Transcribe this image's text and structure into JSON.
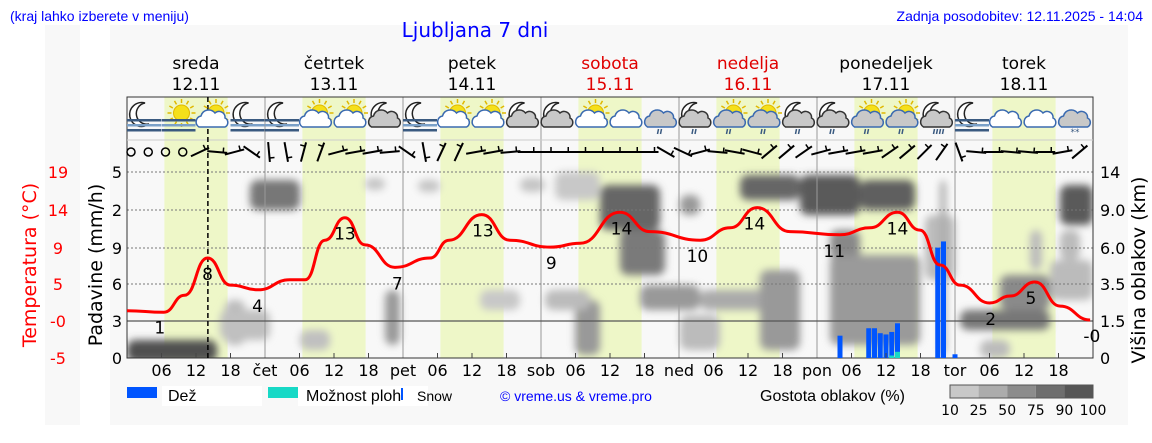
{
  "header": {
    "hint": "(kraj lahko izberete v meniju)",
    "title": "Ljubljana 7 dni",
    "updated": "Zadnja posodobitev: 12.11.2025 - 14:04"
  },
  "days": [
    {
      "name": "sreda",
      "date": "12.11",
      "weekend": false,
      "abbr": ""
    },
    {
      "name": "četrtek",
      "date": "13.11",
      "weekend": false,
      "abbr": "čet"
    },
    {
      "name": "petek",
      "date": "14.11",
      "weekend": false,
      "abbr": "pet"
    },
    {
      "name": "sobota",
      "date": "15.11",
      "weekend": true,
      "abbr": "sob"
    },
    {
      "name": "nedelja",
      "date": "16.11",
      "weekend": true,
      "abbr": "ned"
    },
    {
      "name": "ponedeljek",
      "date": "17.11",
      "weekend": false,
      "abbr": "pon"
    },
    {
      "name": "torek",
      "date": "18.11",
      "weekend": false,
      "abbr": "tor"
    }
  ],
  "hour_ticks": [
    "06",
    "12",
    "18"
  ],
  "colors": {
    "temperature": "#ff0000",
    "rain": "#0055ff",
    "showers": "#17d9c6",
    "text_blue": "#0000ff",
    "daylight": "#eef7c8",
    "weekend": "#e00000"
  },
  "weather_icons": [
    "moon-fog",
    "sun-fog",
    "sun-cloud",
    "moon-fog",
    "moon-fog",
    "sun-cloud",
    "sun-cloud",
    "moon-cloud",
    "moon-fog",
    "sun-cloud",
    "sun-cloud",
    "moon-cloud",
    "moon-cloud",
    "sun-cloud",
    "cloud",
    "cloud-rain",
    "moon-cloud-rain",
    "sun-cloud-rain",
    "sun-cloud-rain",
    "moon-cloud-rain",
    "moon-cloud-rain",
    "sun-cloud-rain",
    "sun-cloud-rain",
    "moon-cloud-heavy-rain",
    "moon-fog",
    "cloud",
    "cloud",
    "cloud-snow"
  ],
  "wind_barbs": [
    "calm",
    "calm",
    "calm",
    "calm",
    -25,
    5,
    -15,
    35,
    85,
    80,
    -75,
    -70,
    -15,
    -10,
    -10,
    -5,
    35,
    80,
    -65,
    -65,
    -10,
    -10,
    -5,
    0,
    0,
    0,
    0,
    0,
    0,
    0,
    0,
    30,
    25,
    -15,
    5,
    10,
    15,
    -40,
    -40,
    -35,
    -15,
    -10,
    -10,
    -10,
    -35,
    -40,
    -45,
    -55,
    70,
    5,
    0,
    5,
    5,
    0,
    -10,
    -40
  ],
  "chart_data": {
    "type": "line",
    "now_marker": "12.11 14:04",
    "axes": {
      "temperature": {
        "label": "Temperatura (°C)",
        "ticks": [
          "19",
          "14",
          "9",
          "5",
          "-0",
          "-5"
        ],
        "range": [
          -5,
          19
        ]
      },
      "precipitation": {
        "label": "Padavine (mm/h)",
        "ticks": [
          "5",
          "2",
          "9",
          "6",
          "3",
          "0"
        ]
      },
      "cloud_height": {
        "label": "Višina oblakov (km)",
        "ticks": [
          "14",
          "9.0",
          "6.0",
          "3.5",
          "1.5",
          "0"
        ]
      }
    },
    "temperature_series": [
      [
        "12.11 00:00",
        1.1
      ],
      [
        "12.11 06:24",
        0.9
      ],
      [
        "12.11 10:00",
        3.1
      ],
      [
        "12.11 14:00",
        7.9
      ],
      [
        "12.11 18:00",
        4.4
      ],
      [
        "12.11 22:48",
        3.8
      ],
      [
        "13.11 04:18",
        5.1
      ],
      [
        "13.11 07:00",
        5.1
      ],
      [
        "13.11 10:24",
        10.2
      ],
      [
        "13.11 13:54",
        13.1
      ],
      [
        "13.11 17:24",
        9.6
      ],
      [
        "13.11 22:36",
        6.7
      ],
      [
        "14.11 04:42",
        7.9
      ],
      [
        "14.11 08:00",
        10.2
      ],
      [
        "14.11 13:42",
        13.5
      ],
      [
        "14.11 18:36",
        10.2
      ],
      [
        "15.11 01:36",
        9.3
      ],
      [
        "15.11 06:48",
        9.8
      ],
      [
        "15.11 13:42",
        13.8
      ],
      [
        "15.11 19:00",
        11.3
      ],
      [
        "16.11 03:42",
        10.2
      ],
      [
        "16.11 08:54",
        11.8
      ],
      [
        "16.11 13:36",
        14.4
      ],
      [
        "16.11 19:18",
        11.3
      ],
      [
        "17.11 04:00",
        10.9
      ],
      [
        "17.11 09:12",
        11.8
      ],
      [
        "17.11 14:00",
        13.8
      ],
      [
        "17.11 17:54",
        11.5
      ],
      [
        "17.11 21:24",
        7.0
      ],
      [
        "18.11 00:54",
        4.4
      ],
      [
        "18.11 06:00",
        2.1
      ],
      [
        "18.11 09:36",
        3.0
      ],
      [
        "18.11 13:54",
        4.8
      ],
      [
        "18.11 18:18",
        1.7
      ],
      [
        "18.11 23:30",
        -0.1
      ]
    ],
    "temperature_labels": [
      [
        "12.11 05:42",
        "1",
        1
      ],
      [
        "12.11 14:00",
        "8",
        7.9
      ],
      [
        "12.11 22:42",
        "4",
        3.8
      ],
      [
        "13.11 13:54",
        "13",
        13.1
      ],
      [
        "13.11 23:00",
        "7",
        6.7
      ],
      [
        "14.11 13:54",
        "13",
        13.5
      ],
      [
        "15.11 01:48",
        "9",
        9.3
      ],
      [
        "15.11 14:00",
        "14",
        13.8
      ],
      [
        "16.11 03:12",
        "10",
        10.2
      ],
      [
        "16.11 13:06",
        "14",
        14.4
      ],
      [
        "17.11 03:00",
        "11",
        10.9
      ],
      [
        "17.11 14:00",
        "14",
        13.8
      ],
      [
        "18.11 06:12",
        "2",
        2.1
      ],
      [
        "18.11 13:12",
        "5",
        4.8
      ],
      [
        "18.11 23:48",
        "-0",
        -0.1
      ]
    ],
    "precipitation_bars": [
      [
        "17.11 04:00",
        0.18,
        0
      ],
      [
        "17.11 09:00",
        0.24,
        0
      ],
      [
        "17.11 10:00",
        0.24,
        0
      ],
      [
        "17.11 11:00",
        0.2,
        0
      ],
      [
        "17.11 12:00",
        0.19,
        0
      ],
      [
        "17.11 13:00",
        0.21,
        0.02
      ],
      [
        "17.11 14:00",
        0.28,
        0.05
      ],
      [
        "17.11 21:00",
        0.89,
        0
      ],
      [
        "17.11 22:00",
        0.94,
        0
      ],
      [
        "18.11 00:00",
        0.03,
        0
      ]
    ]
  },
  "legend": {
    "rain": "Dež",
    "showers": "Možnost ploh",
    "snow": "Snow",
    "credit": "© vreme.us & vreme.pro",
    "cloud_density_title": "Gostota oblakov (%)",
    "cloud_density_ticks": [
      "10",
      "25",
      "50",
      "75",
      "90",
      "100"
    ],
    "cloud_density_colors": [
      "#c8c8c8",
      "#acacac",
      "#8c8c8c",
      "#6e6e6e",
      "#565656"
    ]
  }
}
